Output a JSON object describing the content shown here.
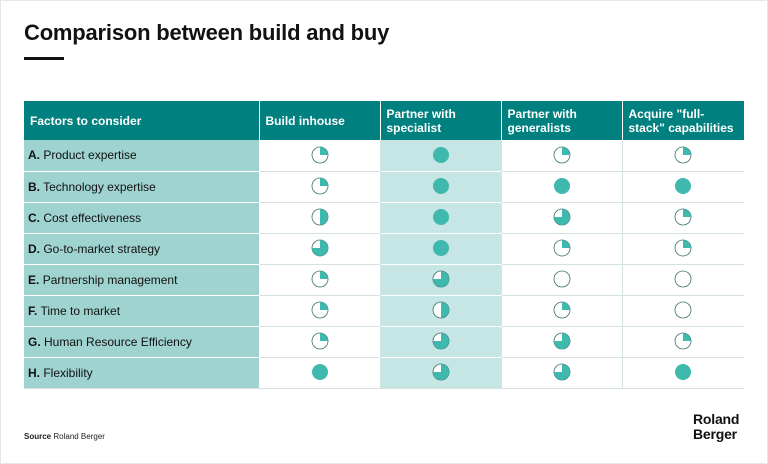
{
  "title": "Comparison between build and buy",
  "colors": {
    "header": "#00807f",
    "factor_bg": "#9fd3d0",
    "highlight_col": "#c5e6e4",
    "pie_fill": "#3fb8ae"
  },
  "table": {
    "header_factor": "Factors to consider",
    "options": [
      {
        "label": "Build inhouse"
      },
      {
        "label": "Partner with specialist"
      },
      {
        "label": "Partner with generalists"
      },
      {
        "label": "Acquire \"full-stack\" capabilities"
      }
    ],
    "rows": [
      {
        "letter": "A.",
        "label": "Product expertise",
        "scores": [
          0.25,
          1,
          0.25,
          0.25
        ]
      },
      {
        "letter": "B.",
        "label": "Technology expertise",
        "scores": [
          0.25,
          1,
          1,
          1
        ]
      },
      {
        "letter": "C.",
        "label": "Cost effectiveness",
        "scores": [
          0.5,
          1,
          0.75,
          0.25
        ]
      },
      {
        "letter": "D.",
        "label": "Go-to-market strategy",
        "scores": [
          0.75,
          1,
          0.25,
          0.25
        ]
      },
      {
        "letter": "E.",
        "label": "Partnership management",
        "scores": [
          0.25,
          0.75,
          0,
          0
        ]
      },
      {
        "letter": "F.",
        "label": "Time to market",
        "scores": [
          0.25,
          0.5,
          0.25,
          0
        ]
      },
      {
        "letter": "G.",
        "label": "Human Resource Efficiency",
        "scores": [
          0.25,
          0.75,
          0.75,
          0.25
        ]
      },
      {
        "letter": "H.",
        "label": "Flexibility",
        "scores": [
          1,
          0.75,
          0.75,
          1
        ]
      }
    ]
  },
  "source": {
    "label": "Source",
    "text": "Roland Berger"
  },
  "logo": {
    "line1": "Roland",
    "line2": "Berger"
  }
}
